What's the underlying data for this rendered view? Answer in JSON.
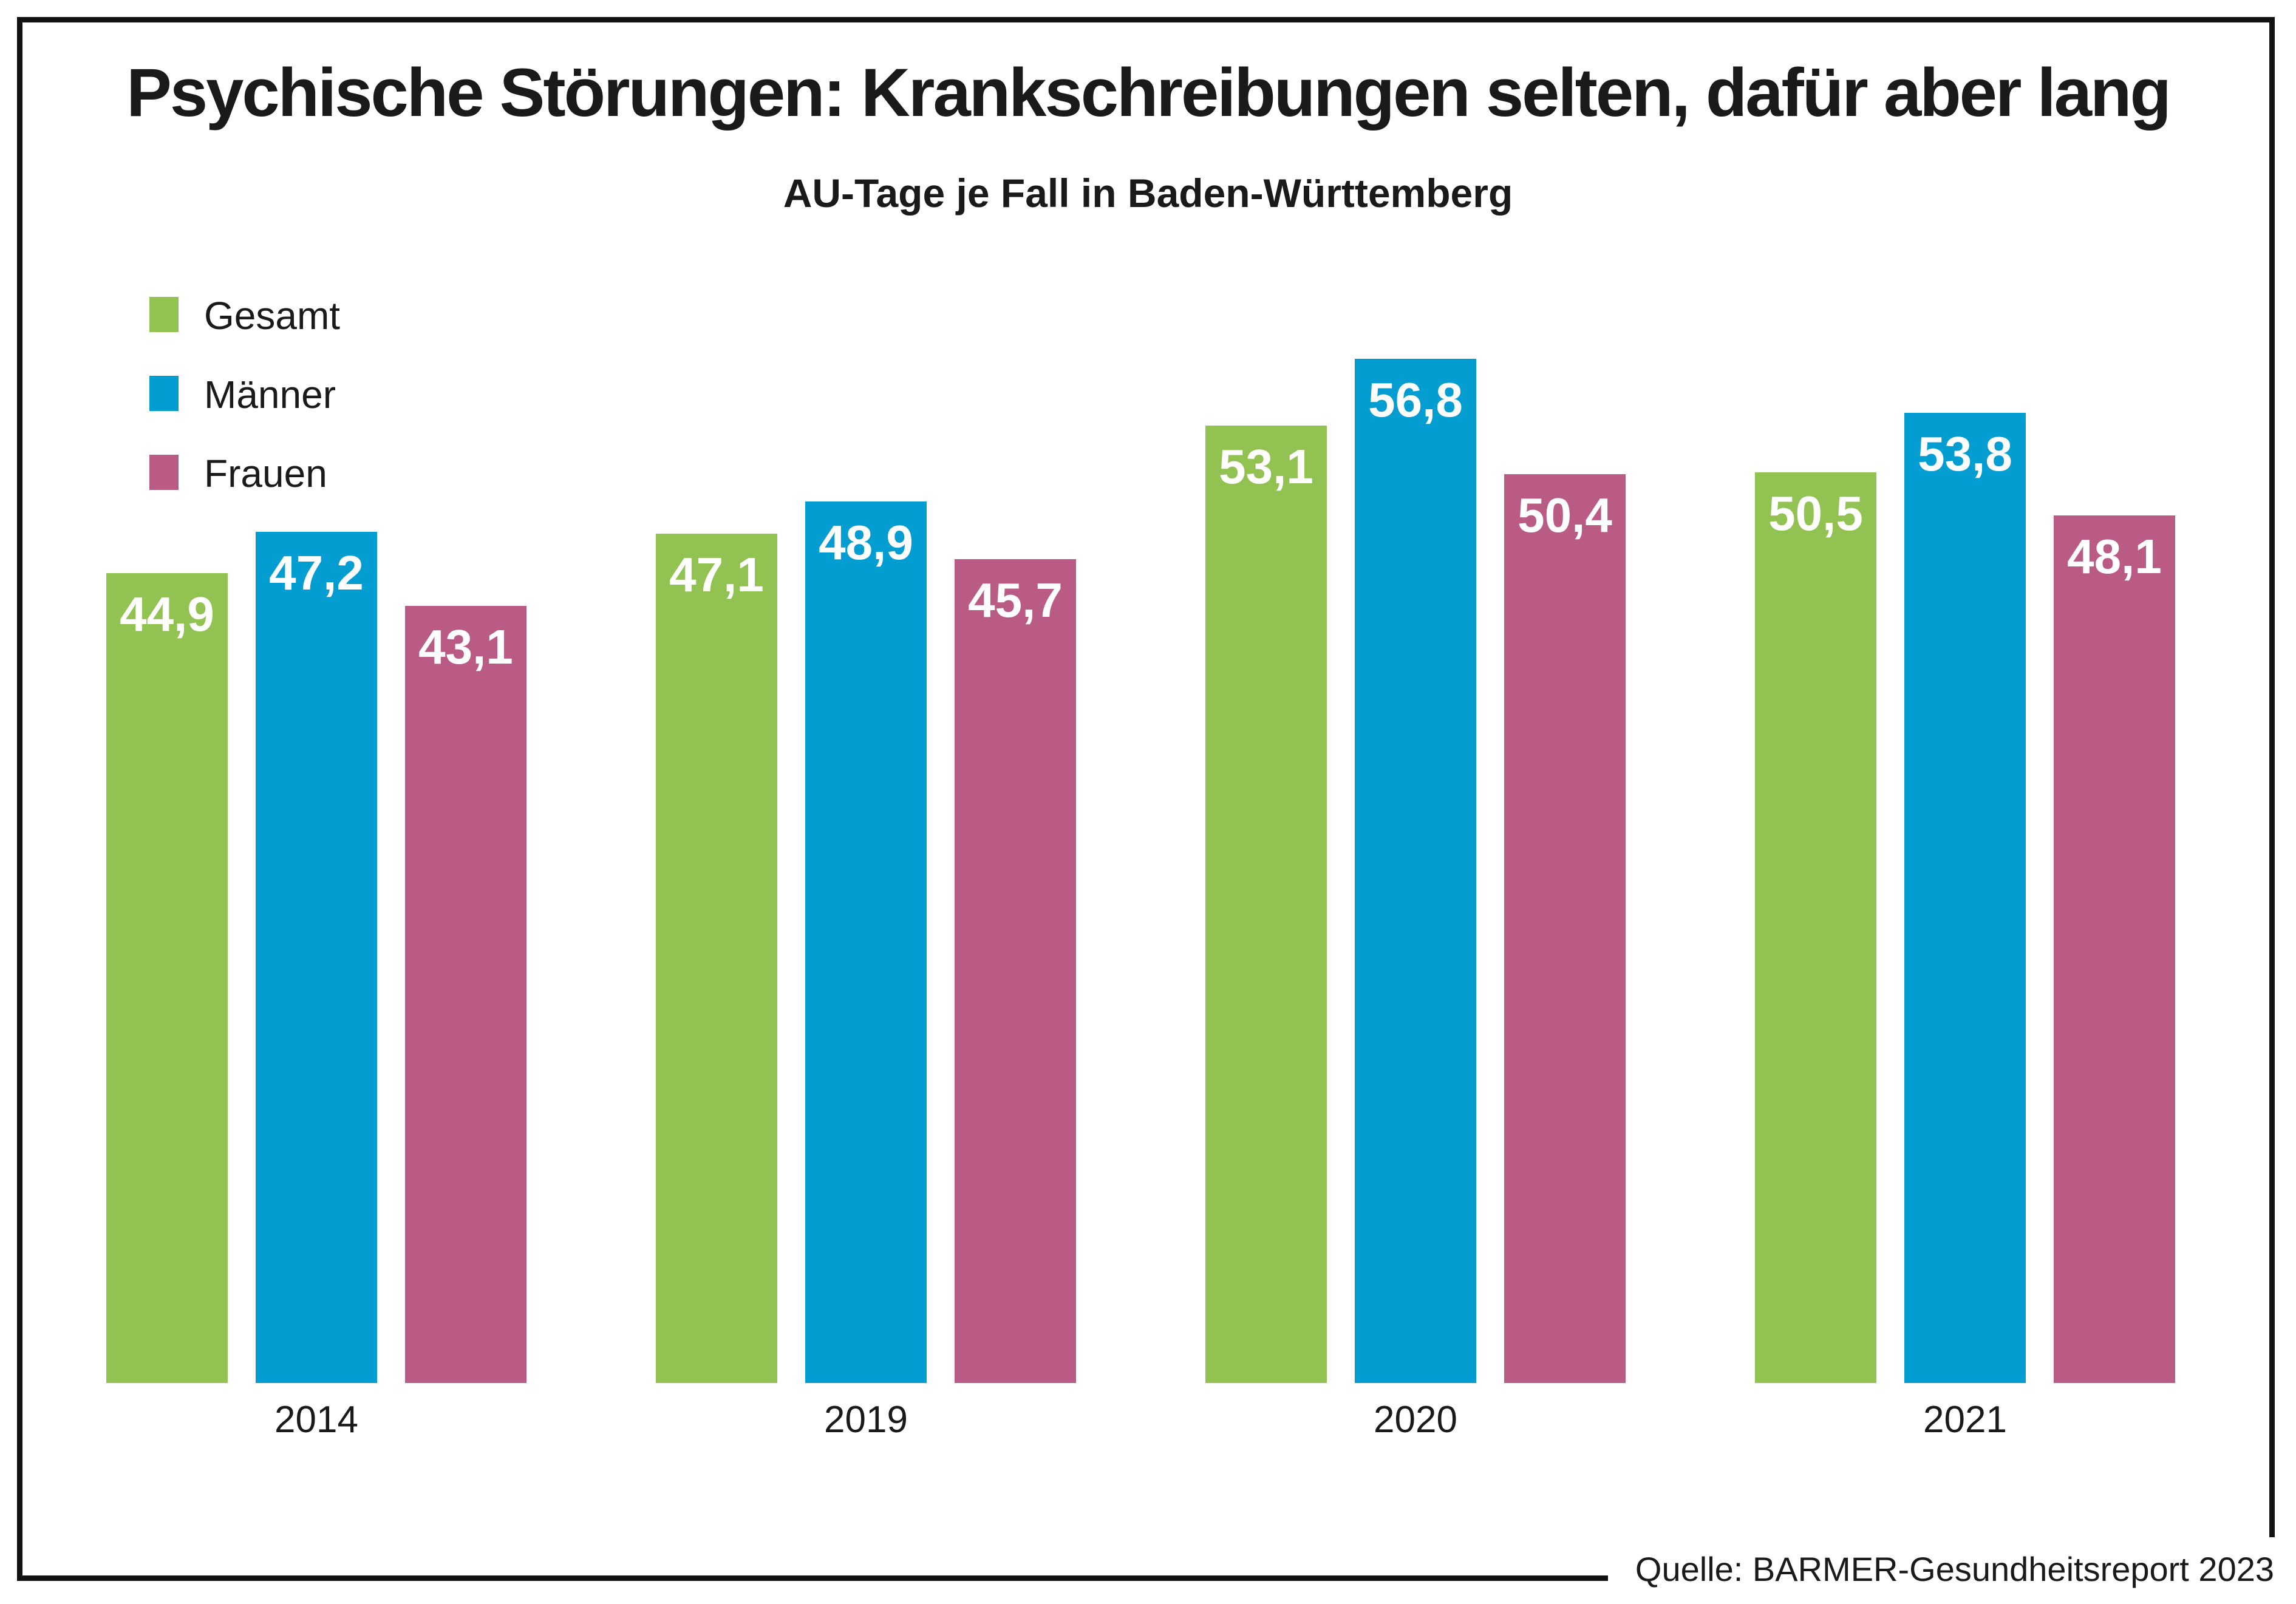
{
  "chart_data": {
    "type": "bar",
    "title": "Psychische Störungen: Krankschreibungen selten, dafür aber lang",
    "subtitle": "AU-Tage je Fall in Baden-Württemberg",
    "categories": [
      "2014",
      "2019",
      "2020",
      "2021"
    ],
    "series": [
      {
        "name": "Gesamt",
        "color": "#92C252",
        "values": [
          44.9,
          47.1,
          53.1,
          50.5
        ]
      },
      {
        "name": "Männer",
        "color": "#049DD2",
        "values": [
          47.2,
          48.9,
          56.8,
          53.8
        ]
      },
      {
        "name": "Frauen",
        "color": "#BA5B85",
        "values": [
          43.1,
          45.7,
          50.4,
          48.1
        ]
      }
    ],
    "value_labels_shown": true,
    "value_label_decimal_separator": ",",
    "value_label_color": "#ffffff",
    "legend_position": "top-left",
    "grid": false,
    "y_axis_hidden": true,
    "baseline_value": 0
  },
  "source": {
    "label": "Quelle: BARMER-Gesundheitsreport 2023"
  },
  "frame_color": "#121212"
}
